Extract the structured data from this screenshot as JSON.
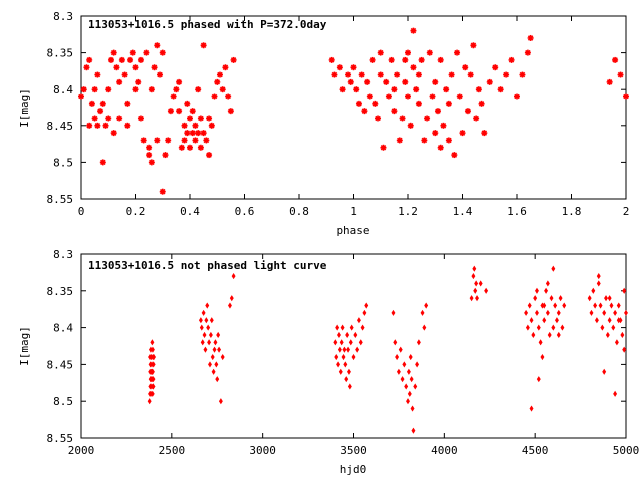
{
  "chart_data": [
    {
      "type": "scatter",
      "title": "113053+1016.5 phased with P=372.0day",
      "xlabel": "phase",
      "ylabel": "I[mag]",
      "xlim": [
        0,
        2
      ],
      "ylim": [
        8.3,
        8.55
      ],
      "y_inverted": true,
      "xticks": [
        "0",
        "0.2",
        "0.4",
        "0.6",
        "0.8",
        "1",
        "1.2",
        "1.4",
        "1.6",
        "1.8",
        "2"
      ],
      "yticks": [
        "8.3",
        "8.35",
        "8.4",
        "8.45",
        "8.5",
        "8.55"
      ],
      "marker_color": "#ff0000",
      "marker": "star",
      "series": [
        {
          "x": [
            0.0,
            0.01,
            0.02,
            0.03,
            0.03,
            0.04,
            0.05,
            0.05,
            0.06,
            0.06,
            0.07,
            0.08,
            0.08,
            0.09,
            0.1,
            0.1,
            0.11,
            0.12,
            0.12,
            0.13,
            0.14,
            0.14,
            0.15,
            0.16,
            0.17,
            0.17,
            0.18,
            0.19,
            0.2,
            0.2,
            0.21,
            0.22,
            0.22,
            0.23,
            0.24,
            0.25,
            0.25,
            0.26,
            0.26,
            0.27,
            0.28,
            0.28,
            0.29,
            0.3,
            0.3,
            0.31,
            0.32,
            0.33,
            0.34,
            0.35,
            0.36,
            0.36,
            0.37,
            0.38,
            0.38,
            0.39,
            0.39,
            0.4,
            0.4,
            0.41,
            0.41,
            0.42,
            0.42,
            0.43,
            0.43,
            0.44,
            0.44,
            0.45,
            0.45,
            0.46,
            0.47,
            0.47,
            0.48,
            0.49,
            0.5,
            0.51,
            0.52,
            0.53,
            0.54,
            0.55,
            0.56,
            0.92,
            0.93,
            0.95,
            0.96,
            0.98,
            0.99,
            1.0,
            1.01,
            1.02,
            1.03,
            1.04,
            1.05,
            1.06,
            1.07,
            1.08,
            1.09,
            1.1,
            1.1,
            1.11,
            1.12,
            1.13,
            1.14,
            1.15,
            1.15,
            1.16,
            1.17,
            1.18,
            1.19,
            1.19,
            1.2,
            1.2,
            1.21,
            1.22,
            1.22,
            1.23,
            1.24,
            1.24,
            1.25,
            1.26,
            1.27,
            1.28,
            1.29,
            1.3,
            1.3,
            1.31,
            1.32,
            1.32,
            1.33,
            1.34,
            1.35,
            1.35,
            1.36,
            1.37,
            1.38,
            1.39,
            1.4,
            1.41,
            1.42,
            1.43,
            1.44,
            1.45,
            1.46,
            1.47,
            1.48,
            1.5,
            1.52,
            1.54,
            1.56,
            1.58,
            1.6,
            1.62,
            1.64,
            1.65,
            1.94,
            1.96,
            1.98,
            2.0
          ],
          "y": [
            8.41,
            8.4,
            8.37,
            8.45,
            8.36,
            8.42,
            8.44,
            8.4,
            8.38,
            8.45,
            8.43,
            8.5,
            8.42,
            8.45,
            8.44,
            8.4,
            8.36,
            8.35,
            8.46,
            8.37,
            8.39,
            8.44,
            8.36,
            8.38,
            8.42,
            8.45,
            8.36,
            8.35,
            8.4,
            8.37,
            8.39,
            8.36,
            8.44,
            8.47,
            8.35,
            8.48,
            8.49,
            8.4,
            8.5,
            8.37,
            8.47,
            8.34,
            8.38,
            8.54,
            8.35,
            8.49,
            8.47,
            8.43,
            8.41,
            8.4,
            8.43,
            8.39,
            8.48,
            8.45,
            8.47,
            8.42,
            8.46,
            8.44,
            8.48,
            8.46,
            8.43,
            8.47,
            8.45,
            8.4,
            8.46,
            8.44,
            8.48,
            8.34,
            8.46,
            8.47,
            8.44,
            8.49,
            8.45,
            8.41,
            8.39,
            8.38,
            8.4,
            8.37,
            8.41,
            8.43,
            8.36,
            8.36,
            8.38,
            8.37,
            8.4,
            8.38,
            8.39,
            8.37,
            8.4,
            8.42,
            8.38,
            8.43,
            8.39,
            8.41,
            8.36,
            8.42,
            8.44,
            8.38,
            8.35,
            8.48,
            8.39,
            8.41,
            8.36,
            8.4,
            8.43,
            8.38,
            8.47,
            8.44,
            8.39,
            8.36,
            8.41,
            8.35,
            8.45,
            8.37,
            8.32,
            8.4,
            8.42,
            8.38,
            8.36,
            8.47,
            8.44,
            8.35,
            8.41,
            8.39,
            8.46,
            8.43,
            8.48,
            8.36,
            8.45,
            8.4,
            8.42,
            8.47,
            8.38,
            8.49,
            8.35,
            8.41,
            8.46,
            8.37,
            8.43,
            8.38,
            8.34,
            8.44,
            8.4,
            8.42,
            8.46,
            8.39,
            8.37,
            8.4,
            8.38,
            8.36,
            8.41,
            8.38,
            8.35,
            8.33,
            8.39,
            8.36,
            8.38,
            8.41
          ]
        }
      ]
    },
    {
      "type": "scatter",
      "title": "113053+1016.5 not phased light curve",
      "xlabel": "hjd0",
      "ylabel": "I[mag]",
      "xlim": [
        2000,
        5000
      ],
      "ylim": [
        8.3,
        8.55
      ],
      "y_inverted": true,
      "xticks": [
        "2000",
        "2500",
        "3000",
        "3500",
        "4000",
        "4500",
        "5000"
      ],
      "yticks": [
        "8.3",
        "8.35",
        "8.4",
        "8.45",
        "8.5",
        "8.55"
      ],
      "marker_color": "#ff0000",
      "marker": "diamond",
      "series": [
        {
          "x": [
            2380,
            2381,
            2382,
            2383,
            2384,
            2385,
            2386,
            2387,
            2388,
            2389,
            2390,
            2391,
            2392,
            2393,
            2394,
            2395,
            2396,
            2397,
            2398,
            2399,
            2400,
            2378,
            2380,
            2384,
            2392,
            2396,
            2399,
            2402,
            2660,
            2665,
            2670,
            2675,
            2680,
            2685,
            2690,
            2695,
            2700,
            2705,
            2710,
            2715,
            2720,
            2725,
            2730,
            2735,
            2740,
            2745,
            2750,
            2755,
            2760,
            2770,
            2780,
            2820,
            2830,
            2840,
            3400,
            3405,
            3410,
            3415,
            3420,
            3425,
            3430,
            3435,
            3440,
            3445,
            3450,
            3455,
            3460,
            3465,
            3470,
            3475,
            3480,
            3485,
            3490,
            3500,
            3510,
            3520,
            3530,
            3540,
            3550,
            3560,
            3570,
            3720,
            3730,
            3740,
            3750,
            3760,
            3770,
            3780,
            3790,
            3800,
            3805,
            3810,
            3815,
            3820,
            3825,
            3830,
            3840,
            3850,
            3860,
            3880,
            3890,
            3900,
            4150,
            4160,
            4165,
            4170,
            4175,
            4180,
            4200,
            4230,
            4450,
            4460,
            4470,
            4480,
            4490,
            4500,
            4510,
            4520,
            4530,
            4540,
            4550,
            4560,
            4570,
            4580,
            4590,
            4600,
            4610,
            4620,
            4630,
            4640,
            4650,
            4660,
            4480,
            4510,
            4540,
            4570,
            4600,
            4630,
            4520,
            4550,
            4800,
            4810,
            4820,
            4830,
            4840,
            4850,
            4860,
            4870,
            4880,
            4890,
            4900,
            4910,
            4920,
            4930,
            4940,
            4950,
            4960,
            4970,
            4980,
            4990,
            5000,
            4850,
            4880,
            4910,
            4940,
            4960,
            4990
          ],
          "y": [
            8.44,
            8.46,
            8.48,
            8.45,
            8.47,
            8.43,
            8.49,
            8.46,
            8.44,
            8.47,
            8.48,
            8.45,
            8.46,
            8.42,
            8.47,
            8.49,
            8.46,
            8.44,
            8.48,
            8.47,
            8.45,
            8.5,
            8.49,
            8.47,
            8.46,
            8.43,
            8.48,
            8.44,
            8.39,
            8.4,
            8.42,
            8.38,
            8.41,
            8.43,
            8.39,
            8.37,
            8.4,
            8.42,
            8.45,
            8.41,
            8.39,
            8.44,
            8.46,
            8.43,
            8.42,
            8.45,
            8.47,
            8.41,
            8.43,
            8.5,
            8.44,
            8.37,
            8.36,
            8.33,
            8.42,
            8.44,
            8.4,
            8.45,
            8.41,
            8.43,
            8.46,
            8.42,
            8.4,
            8.44,
            8.43,
            8.45,
            8.47,
            8.41,
            8.43,
            8.46,
            8.48,
            8.42,
            8.4,
            8.44,
            8.41,
            8.43,
            8.39,
            8.42,
            8.4,
            8.38,
            8.37,
            8.38,
            8.42,
            8.44,
            8.46,
            8.43,
            8.47,
            8.45,
            8.48,
            8.5,
            8.46,
            8.49,
            8.44,
            8.47,
            8.51,
            8.54,
            8.48,
            8.45,
            8.42,
            8.38,
            8.4,
            8.37,
            8.36,
            8.33,
            8.32,
            8.35,
            8.34,
            8.36,
            8.34,
            8.35,
            8.38,
            8.4,
            8.37,
            8.39,
            8.41,
            8.36,
            8.38,
            8.4,
            8.42,
            8.37,
            8.39,
            8.35,
            8.38,
            8.41,
            8.36,
            8.4,
            8.37,
            8.39,
            8.38,
            8.36,
            8.4,
            8.37,
            8.51,
            8.35,
            8.44,
            8.34,
            8.32,
            8.41,
            8.47,
            8.37,
            8.36,
            8.38,
            8.35,
            8.37,
            8.39,
            8.34,
            8.37,
            8.4,
            8.38,
            8.36,
            8.41,
            8.39,
            8.37,
            8.4,
            8.38,
            8.42,
            8.37,
            8.39,
            8.41,
            8.43,
            8.38,
            8.33,
            8.46,
            8.36,
            8.49,
            8.39,
            8.35
          ]
        }
      ]
    }
  ]
}
